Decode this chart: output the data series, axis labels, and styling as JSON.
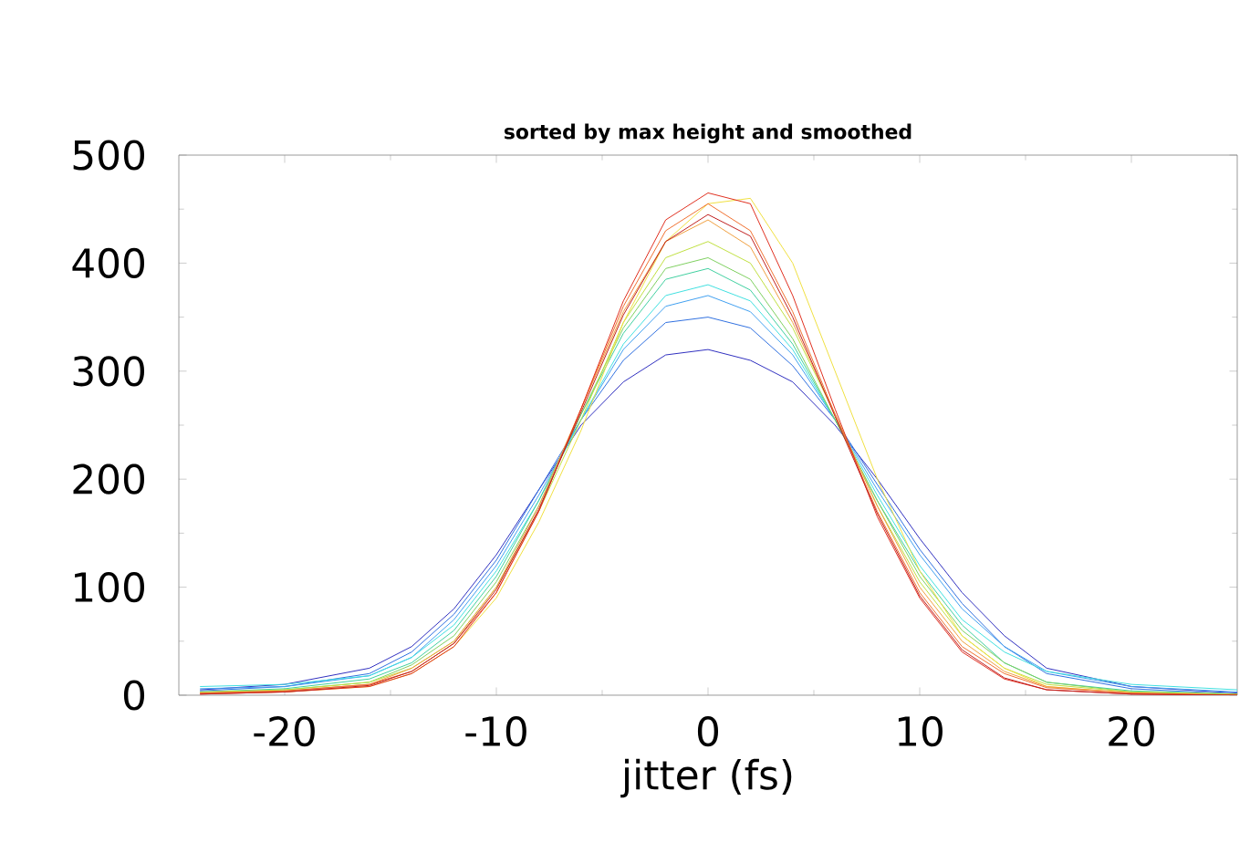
{
  "chart_data": {
    "type": "line",
    "title": "sorted by max height and smoothed",
    "xlabel": "jitter (fs)",
    "x": [
      -24,
      -20,
      -16,
      -14,
      -12,
      -10,
      -8,
      -6,
      -4,
      -2,
      0,
      2,
      4,
      6,
      8,
      10,
      12,
      14,
      16,
      20,
      25
    ],
    "xlim": [
      -25,
      25
    ],
    "ylim": [
      0,
      500
    ],
    "xticks": [
      -20,
      -10,
      0,
      10,
      20
    ],
    "yticks": [
      0,
      100,
      200,
      300,
      400,
      500
    ],
    "series": [
      {
        "color": "#3030c0",
        "values": [
          5,
          10,
          25,
          45,
          80,
          130,
          190,
          250,
          290,
          315,
          320,
          310,
          290,
          250,
          200,
          145,
          95,
          55,
          25,
          8,
          2
        ]
      },
      {
        "color": "#3070e0",
        "values": [
          4,
          8,
          20,
          40,
          75,
          125,
          190,
          255,
          310,
          345,
          350,
          340,
          305,
          255,
          195,
          135,
          85,
          45,
          20,
          6,
          1
        ]
      },
      {
        "color": "#40a0f0",
        "values": [
          6,
          8,
          18,
          35,
          70,
          120,
          185,
          255,
          320,
          360,
          370,
          355,
          315,
          255,
          190,
          130,
          80,
          45,
          22,
          8,
          3
        ]
      },
      {
        "color": "#40e0e0",
        "values": [
          8,
          10,
          18,
          35,
          65,
          115,
          180,
          255,
          325,
          370,
          380,
          365,
          320,
          255,
          185,
          120,
          70,
          40,
          22,
          10,
          5
        ]
      },
      {
        "color": "#40d0a0",
        "values": [
          3,
          6,
          15,
          30,
          60,
          110,
          180,
          260,
          335,
          385,
          395,
          375,
          325,
          255,
          180,
          115,
          65,
          30,
          12,
          4,
          1
        ]
      },
      {
        "color": "#80d060",
        "values": [
          2,
          5,
          12,
          28,
          55,
          105,
          175,
          260,
          340,
          395,
          405,
          385,
          330,
          255,
          180,
          110,
          60,
          30,
          12,
          3,
          1
        ]
      },
      {
        "color": "#c0e040",
        "values": [
          3,
          5,
          12,
          25,
          50,
          100,
          170,
          255,
          345,
          405,
          420,
          400,
          340,
          260,
          175,
          105,
          55,
          25,
          10,
          3,
          1
        ]
      },
      {
        "color": "#f0e040",
        "values": [
          2,
          3,
          8,
          20,
          45,
          90,
          160,
          245,
          345,
          420,
          455,
          460,
          400,
          300,
          200,
          115,
          55,
          25,
          8,
          2,
          0
        ]
      },
      {
        "color": "#f0a040",
        "values": [
          2,
          4,
          10,
          25,
          50,
          100,
          175,
          265,
          355,
          420,
          440,
          415,
          345,
          260,
          175,
          100,
          50,
          22,
          8,
          2,
          0
        ]
      },
      {
        "color": "#f07030",
        "values": [
          2,
          4,
          10,
          22,
          48,
          95,
          170,
          265,
          360,
          430,
          455,
          430,
          355,
          260,
          170,
          95,
          45,
          20,
          7,
          2,
          0
        ]
      },
      {
        "color": "#e03020",
        "values": [
          1,
          3,
          8,
          20,
          45,
          95,
          170,
          265,
          365,
          440,
          465,
          455,
          370,
          265,
          165,
          90,
          40,
          15,
          5,
          1,
          0
        ]
      },
      {
        "color": "#c02020",
        "values": [
          1,
          3,
          9,
          22,
          48,
          98,
          172,
          262,
          352,
          420,
          445,
          425,
          350,
          258,
          168,
          92,
          42,
          16,
          5,
          1,
          0
        ]
      }
    ]
  }
}
